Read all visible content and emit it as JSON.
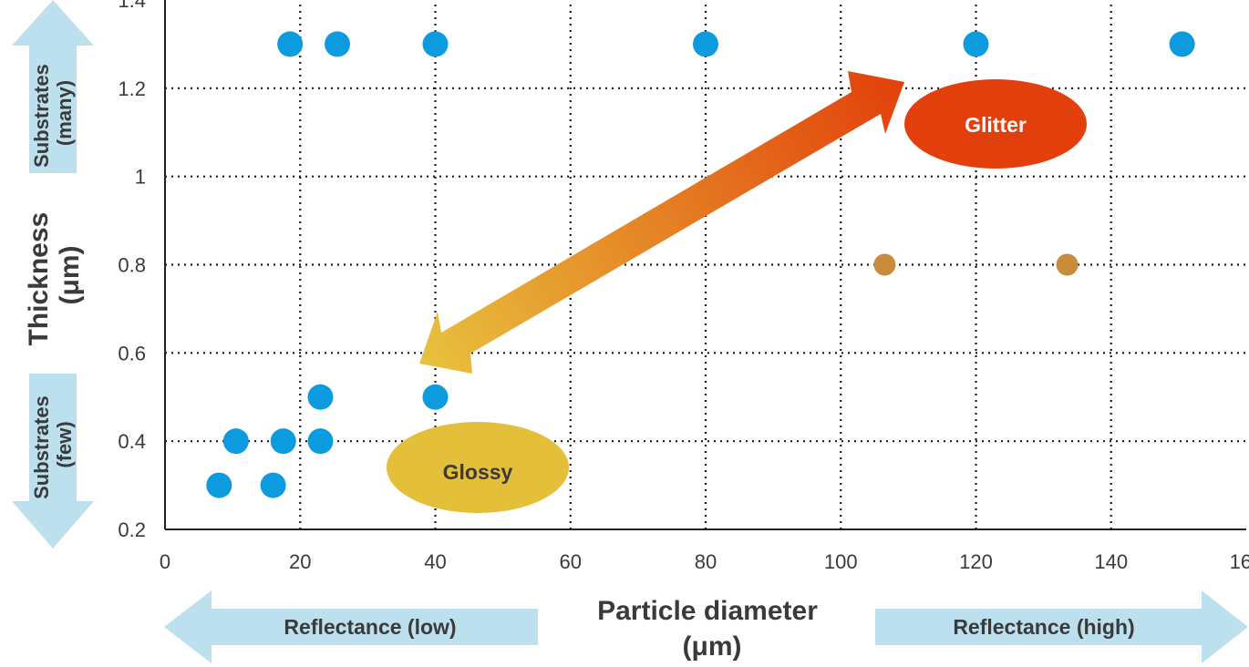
{
  "chart_data": {
    "type": "scatter",
    "xlabel": "Particle diameter",
    "xlabel_unit": "(μm)",
    "ylabel": "Thickness",
    "ylabel_unit": "(μm)",
    "xlim": [
      0,
      160
    ],
    "ylim": [
      0.2,
      1.4
    ],
    "x_ticks": [
      "0",
      "20",
      "40",
      "60",
      "80",
      "100",
      "120",
      "140",
      "160"
    ],
    "y_ticks": [
      "0.2",
      "0.4",
      "0.6",
      "0.8",
      "1",
      "1.2",
      "1.4"
    ],
    "grid": "dotted",
    "series": [
      {
        "color": "#0d9be0",
        "points": [
          {
            "x": 18.5,
            "y": 1.3
          },
          {
            "x": 25.5,
            "y": 1.3
          },
          {
            "x": 40,
            "y": 1.3
          },
          {
            "x": 80,
            "y": 1.3
          },
          {
            "x": 120,
            "y": 1.3
          },
          {
            "x": 150.5,
            "y": 1.3
          },
          {
            "x": 23,
            "y": 0.5
          },
          {
            "x": 40,
            "y": 0.5
          },
          {
            "x": 10.5,
            "y": 0.4
          },
          {
            "x": 17.5,
            "y": 0.4
          },
          {
            "x": 23,
            "y": 0.4
          },
          {
            "x": 8,
            "y": 0.3
          },
          {
            "x": 16,
            "y": 0.3
          }
        ]
      },
      {
        "color": "#c98c3c",
        "points": [
          {
            "x": 106.5,
            "y": 0.8
          },
          {
            "x": 133.5,
            "y": 0.8
          }
        ]
      }
    ],
    "annotations": {
      "glitter": {
        "label": "Glitter",
        "color": "#e23f0c",
        "text_color": "#ffffff",
        "x": 122.5,
        "y": 1.15
      },
      "glossy": {
        "label": "Glossy",
        "color": "#e3bf3a",
        "text_color": "#3a3a3a",
        "x": 46,
        "y": 0.36
      }
    },
    "arrows": {
      "reflectance_low": "Reflectance (low)",
      "reflectance_high": "Reflectance (high)",
      "substrates_many": [
        "Substrates",
        "(many)"
      ],
      "substrates_few": [
        "Substrates",
        "(few)"
      ],
      "color": "#bde0ee"
    }
  }
}
